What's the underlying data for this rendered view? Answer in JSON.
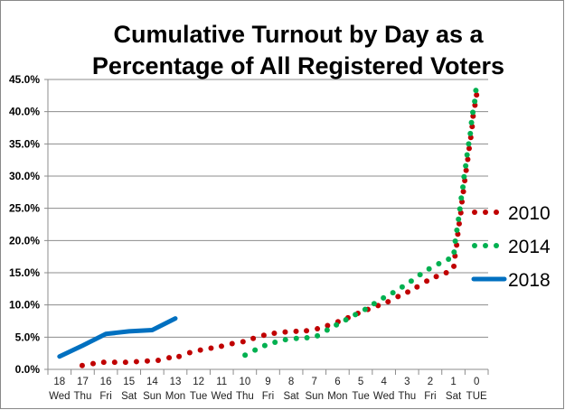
{
  "chart_data": {
    "type": "scatter",
    "title_lines": [
      "Cumulative Turnout by Day as a",
      "Percentage of All Registered Voters"
    ],
    "xlabel": "",
    "ylabel": "",
    "ylim": [
      0,
      45
    ],
    "ytick_labels": [
      "0.0%",
      "5.0%",
      "10.0%",
      "15.0%",
      "20.0%",
      "25.0%",
      "30.0%",
      "35.0%",
      "40.0%",
      "45.0%"
    ],
    "x_reversed": true,
    "xlim": [
      18,
      0
    ],
    "x_categories": [
      {
        "day": "18",
        "weekday": "Wed"
      },
      {
        "day": "17",
        "weekday": "Thu"
      },
      {
        "day": "16",
        "weekday": "Fri"
      },
      {
        "day": "15",
        "weekday": "Sat"
      },
      {
        "day": "14",
        "weekday": "Sun"
      },
      {
        "day": "13",
        "weekday": "Mon"
      },
      {
        "day": "12",
        "weekday": "Tue"
      },
      {
        "day": "11",
        "weekday": "Wed"
      },
      {
        "day": "10",
        "weekday": "Thu"
      },
      {
        "day": "9",
        "weekday": "Fri"
      },
      {
        "day": "8",
        "weekday": "Sat"
      },
      {
        "day": "7",
        "weekday": "Sun"
      },
      {
        "day": "6",
        "weekday": "Mon"
      },
      {
        "day": "5",
        "weekday": "Tue"
      },
      {
        "day": "4",
        "weekday": "Wed"
      },
      {
        "day": "3",
        "weekday": "Thu"
      },
      {
        "day": "2",
        "weekday": "Fri"
      },
      {
        "day": "1",
        "weekday": "Sat"
      },
      {
        "day": "0",
        "weekday": "TUE"
      }
    ],
    "grid": "horizontal",
    "legend_placement": "right",
    "series": [
      {
        "name": "2010",
        "style": "dotted",
        "color": "#C00000",
        "x": [
          17.02,
          16.55,
          16.09,
          15.62,
          15.15,
          14.68,
          14.21,
          13.74,
          13.27,
          12.84,
          12.38,
          11.92,
          11.46,
          11.01,
          10.55,
          10.08,
          9.64,
          9.18,
          8.73,
          8.26,
          7.79,
          7.34,
          6.87,
          6.43,
          5.98,
          5.55,
          5.12,
          4.69,
          4.25,
          3.82,
          3.39,
          2.97,
          2.57,
          2.15,
          1.74,
          1.31,
          0.98,
          0.93,
          0.86,
          0.81,
          0.75,
          0.68,
          0.63,
          0.57,
          0.51,
          0.45,
          0.38,
          0.32,
          0.25,
          0.19,
          0.15,
          0.07,
          0.0
        ],
        "y": [
          0.6,
          0.9,
          1.1,
          1.1,
          1.1,
          1.2,
          1.3,
          1.4,
          1.8,
          2.0,
          2.6,
          3.0,
          3.3,
          3.6,
          4.0,
          4.3,
          4.8,
          5.3,
          5.6,
          5.8,
          5.9,
          6.0,
          6.3,
          6.8,
          7.4,
          8.0,
          8.7,
          9.3,
          9.9,
          10.5,
          11.3,
          12.0,
          12.8,
          13.7,
          14.4,
          15.0,
          16.0,
          17.6,
          19.3,
          21.0,
          22.6,
          24.3,
          26.0,
          27.6,
          29.3,
          30.9,
          32.6,
          34.3,
          36.0,
          37.7,
          39.3,
          41.0,
          42.6
        ]
      },
      {
        "name": "2014",
        "style": "dotted",
        "color": "#00B050",
        "x": [
          9.99,
          9.56,
          9.14,
          8.7,
          8.25,
          7.78,
          7.32,
          6.87,
          6.45,
          6.05,
          5.64,
          5.23,
          4.81,
          4.42,
          4.02,
          3.61,
          3.21,
          2.82,
          2.44,
          2.05,
          1.63,
          1.21,
          0.97,
          0.92,
          0.85,
          0.78,
          0.72,
          0.66,
          0.59,
          0.54,
          0.47,
          0.41,
          0.34,
          0.27,
          0.22,
          0.16,
          0.08,
          0.03
        ],
        "y": [
          2.2,
          3.0,
          3.7,
          4.2,
          4.6,
          4.8,
          4.9,
          5.2,
          6.1,
          6.9,
          7.7,
          8.5,
          9.3,
          10.2,
          11.1,
          11.9,
          12.8,
          13.7,
          14.7,
          15.6,
          16.4,
          17.1,
          18.2,
          19.9,
          21.6,
          23.3,
          24.9,
          26.6,
          28.3,
          29.9,
          31.6,
          33.3,
          35.0,
          36.6,
          38.3,
          39.9,
          41.6,
          43.3
        ]
      },
      {
        "name": "2018",
        "style": "line",
        "color": "#0070C0",
        "x": [
          18,
          17,
          16,
          15,
          14,
          13
        ],
        "y": [
          2.0,
          3.7,
          5.5,
          5.9,
          6.1,
          7.9
        ]
      }
    ]
  }
}
